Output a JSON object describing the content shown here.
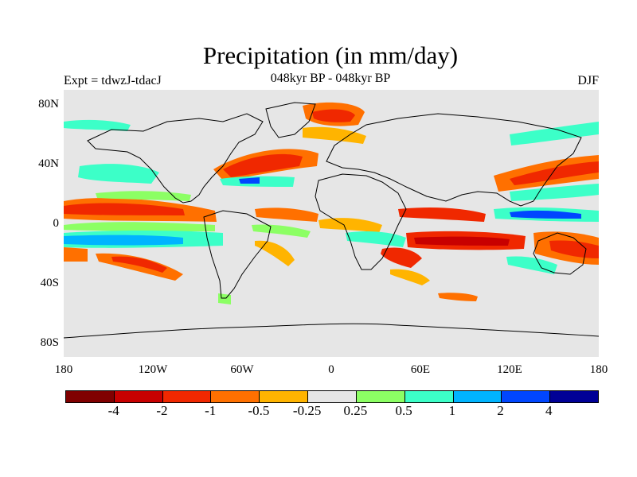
{
  "header": {
    "title": "Precipitation (in mm/day)",
    "subtitle": "048kyr BP - 048kyr BP",
    "left_label": "Expt = tdwzJ-tdacJ",
    "right_label": "DJF"
  },
  "map": {
    "projection": "equirectangular",
    "lon_range": [
      -180,
      180
    ],
    "lat_range": [
      -90,
      90
    ],
    "background_color": "#e6e6e6",
    "lat_labels": [
      "80N",
      "40N",
      "0",
      "40S",
      "80S"
    ],
    "lon_labels": [
      "180",
      "120W",
      "60W",
      "0",
      "60E",
      "120E",
      "180"
    ]
  },
  "colorbar": {
    "colors": [
      "#800000",
      "#c80000",
      "#f02800",
      "#ff7000",
      "#ffb400",
      "#e6e6e6",
      "#8cff64",
      "#3cffc8",
      "#00b4ff",
      "#0046ff",
      "#000096"
    ],
    "labels": [
      "-4",
      "-2",
      "-1",
      "-0.5",
      "-0.25",
      "0.25",
      "0.5",
      "1",
      "2",
      "4"
    ]
  }
}
